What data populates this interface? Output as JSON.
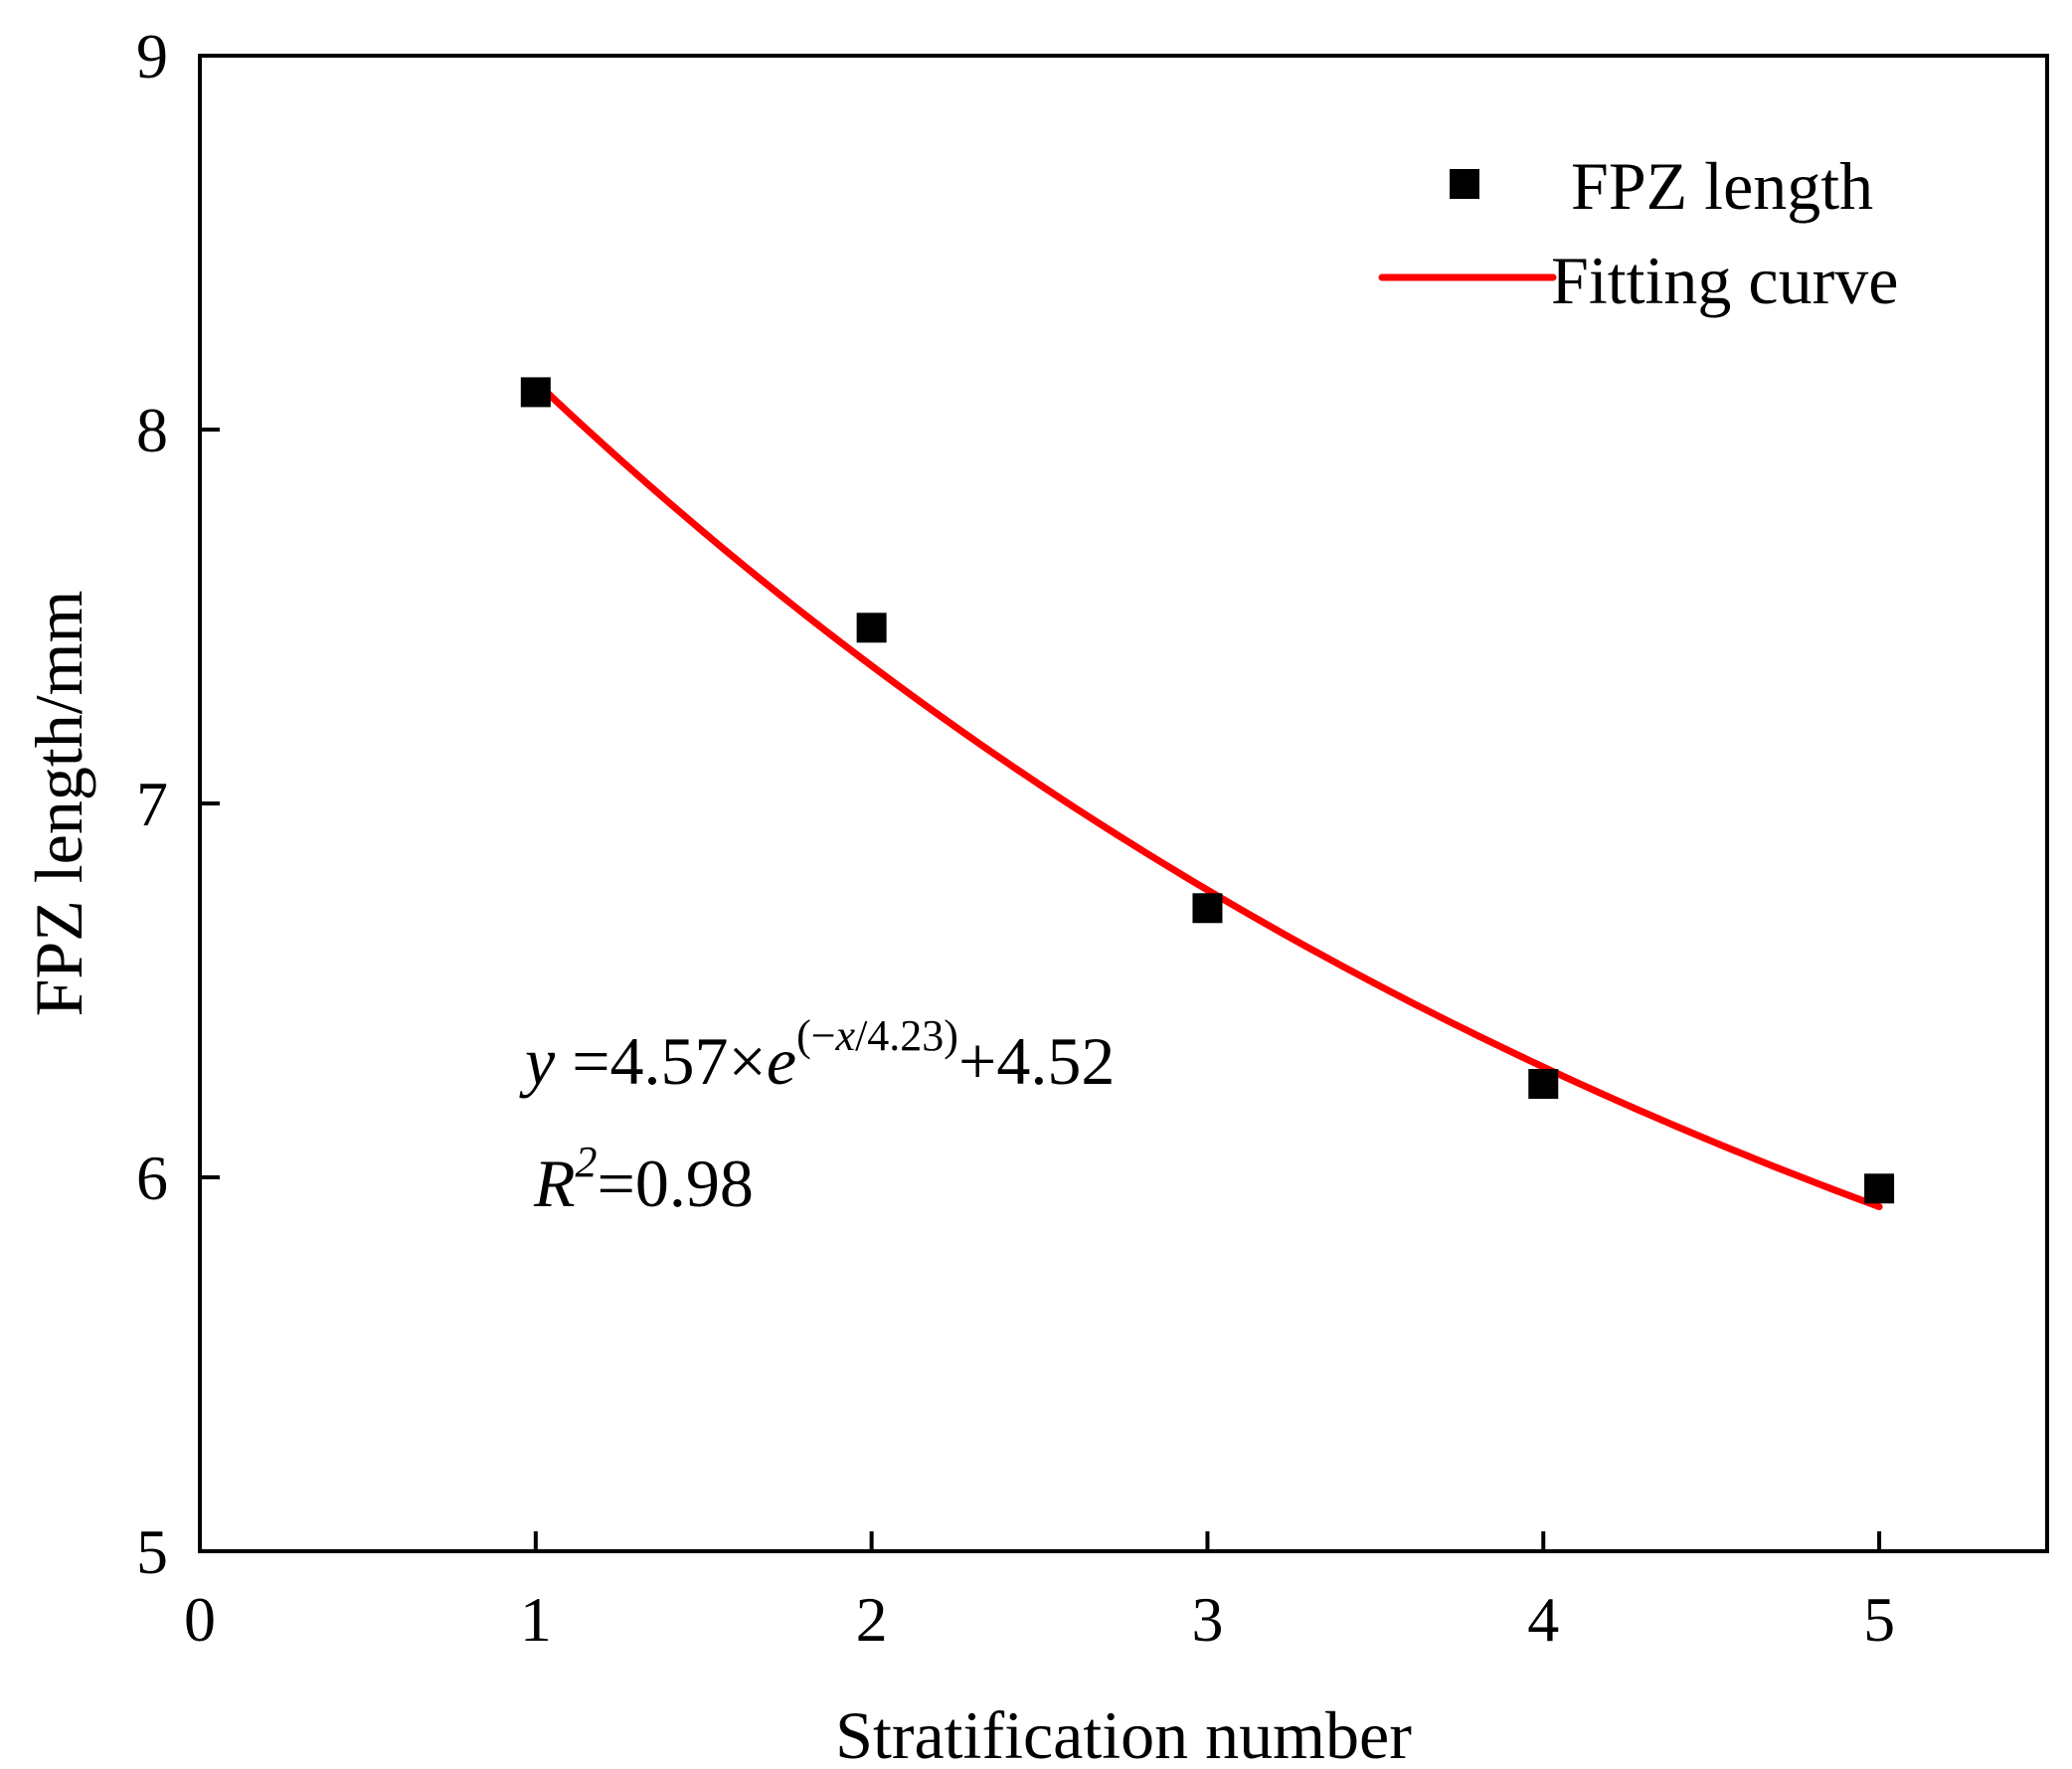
{
  "chart_data": {
    "type": "scatter",
    "title": "",
    "xlabel": "Stratification number",
    "ylabel": "FPZ length/mm",
    "xlim": [
      0,
      5.5
    ],
    "ylim": [
      5,
      9
    ],
    "x_ticks": [
      0,
      1,
      2,
      3,
      4,
      5
    ],
    "y_ticks": [
      5,
      6,
      7,
      8,
      9
    ],
    "x_tick_labels": [
      "0",
      "1",
      "2",
      "3",
      "4",
      "5"
    ],
    "y_tick_labels": [
      "5",
      "6",
      "7",
      "8",
      "9"
    ],
    "grid": false,
    "legend_position": "top-right",
    "series": [
      {
        "name": "FPZ length",
        "kind": "scatter",
        "marker": "square",
        "color": "#000000",
        "x": [
          1,
          2,
          3,
          4,
          5
        ],
        "y": [
          8.1,
          7.47,
          6.72,
          6.25,
          5.97
        ]
      },
      {
        "name": "Fitting curve",
        "kind": "line",
        "color": "#ff0000",
        "model": {
          "a": 4.57,
          "t": 4.23,
          "c": 4.52
        },
        "x_range": [
          1,
          5
        ]
      }
    ],
    "annotations": {
      "eq_y": "y",
      "eq_mid": " =4.57×",
      "eq_e": "e",
      "eq_sup_open": "(−",
      "eq_sup_x": "x",
      "eq_sup_rest": "/4.23)",
      "eq_tail": "+4.52",
      "r2_r": "R",
      "r2_sup": "2",
      "r2_value": "=0.98"
    }
  }
}
